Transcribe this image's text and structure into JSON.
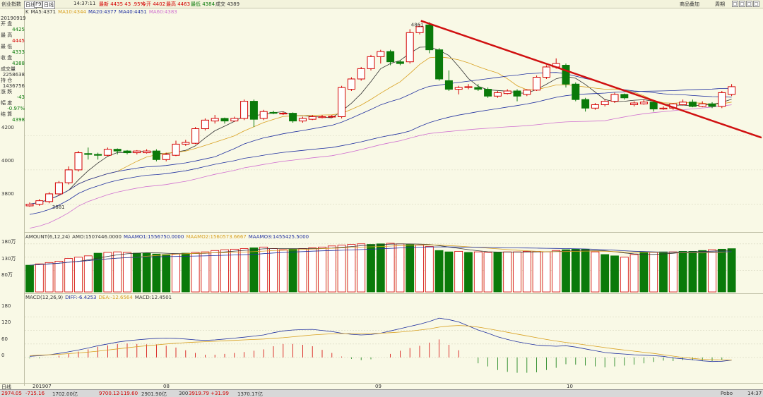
{
  "toolbar": {
    "index_name": "创业指数",
    "period_btn": "日线",
    "f9_btn": "F9",
    "bigdata_btn": "日线",
    "time": "14:37:11",
    "quote": "最新 4435 43 .95%",
    "open": "今开 4402",
    "high": "最高 4463",
    "low": "最低 4384",
    "volume": "成交 4389",
    "right_link": "商品叠加",
    "right_link2": "周期",
    "win_buttons": [
      "□",
      "□",
      "□",
      "□"
    ]
  },
  "info_panel": {
    "date": "20190919",
    "rows": [
      {
        "label": "开 盘",
        "value": "4425",
        "color": "green"
      },
      {
        "label": "最 高",
        "value": "4445",
        "color": "red"
      },
      {
        "label": "最 低",
        "value": "4333",
        "color": "green"
      },
      {
        "label": "收 盘",
        "value": "4388",
        "color": "green"
      },
      {
        "label": "成交量",
        "value": "2258638",
        "color": "dark"
      },
      {
        "label": "持 仓",
        "value": "1436756",
        "color": "dark"
      },
      {
        "label": "涨 跌",
        "value": "-43",
        "color": "green"
      },
      {
        "label": "幅 度",
        "value": "-0.97%",
        "color": "green"
      },
      {
        "label": "结 算",
        "value": "4398",
        "color": "green"
      }
    ]
  },
  "ma_legend": [
    {
      "text": "K",
      "color": "#333333"
    },
    {
      "text": "MA5:4371",
      "color": "#333333"
    },
    {
      "text": "MA10:4344",
      "color": "#d8a020"
    },
    {
      "text": "MA20:4377",
      "color": "#2030a0"
    },
    {
      "text": "MA40:4451",
      "color": "#2030a0"
    },
    {
      "text": "MA60:4383",
      "color": "#d070d0"
    }
  ],
  "amount_legend": [
    {
      "text": "AMOUNT(6,12,24)",
      "color": "#333333"
    },
    {
      "text": "AMO:1507446.0000",
      "color": "#333333"
    },
    {
      "text": "MAAMO1:1556750.0000",
      "color": "#2030a0"
    },
    {
      "text": "MAAMO2:1560573.6667",
      "color": "#d8a020"
    },
    {
      "text": "MAAMO3:1455425.5000",
      "color": "#2030a0"
    }
  ],
  "macd_legend": [
    {
      "text": "MACD(12,26,9)",
      "color": "#333333"
    },
    {
      "text": "DIFF:-6.4253",
      "color": "#2030a0"
    },
    {
      "text": "DEA:-12.6564",
      "color": "#d8a020"
    },
    {
      "text": "MACD:12.4501",
      "color": "#333333"
    }
  ],
  "price_axis": [
    "4200",
    "4000",
    "3800"
  ],
  "amount_axis": [
    "180万",
    "130万",
    "80万"
  ],
  "macd_axis": [
    "180",
    "120",
    "60",
    "0"
  ],
  "x_labels": [
    "日线",
    "201907",
    "08",
    "09",
    "10"
  ],
  "price_annotations": {
    "high": "4861",
    "low": "3881"
  },
  "bottombar": {
    "items": [
      {
        "text": "2974.05",
        "color": "#d40000"
      },
      {
        "text": "-715.16",
        "color": "#d40000"
      },
      {
        "text": "1702.00亿",
        "color": "#333333"
      },
      {
        "text": "9700.12",
        "color": "#d40000"
      },
      {
        "text": "-119.60",
        "color": "#d40000"
      },
      {
        "text": "2901.90亿",
        "color": "#333333"
      },
      {
        "text": "300",
        "color": "#333333"
      },
      {
        "text": "3919.79",
        "color": "#d40000"
      },
      {
        "text": "+31.99",
        "color": "#d40000"
      },
      {
        "text": "1370.17亿",
        "color": "#333333"
      },
      {
        "text": "Pobo",
        "color": "#333333"
      },
      {
        "text": "14:37",
        "color": "#333333"
      }
    ]
  },
  "chart_data": [
    {
      "type": "candlestick",
      "title": "",
      "y_ticks": [
        3800,
        4000,
        4200
      ],
      "ylim": [
        3650,
        4900
      ],
      "annotations": {
        "max": 4861,
        "min": 3881
      },
      "candles": [
        {
          "o": 3790,
          "c": 3800,
          "h": 3810,
          "l": 3785
        },
        {
          "o": 3800,
          "c": 3820,
          "h": 3830,
          "l": 3790
        },
        {
          "o": 3815,
          "c": 3860,
          "h": 3870,
          "l": 3805
        },
        {
          "o": 3860,
          "c": 3925,
          "h": 3935,
          "l": 3850
        },
        {
          "o": 3925,
          "c": 4000,
          "h": 4020,
          "l": 3915
        },
        {
          "o": 4000,
          "c": 4100,
          "h": 4110,
          "l": 3990
        },
        {
          "o": 4095,
          "c": 4090,
          "h": 4130,
          "l": 4060
        },
        {
          "o": 4090,
          "c": 4085,
          "h": 4100,
          "l": 4060
        },
        {
          "o": 4085,
          "c": 4120,
          "h": 4130,
          "l": 4080
        },
        {
          "o": 4120,
          "c": 4110,
          "h": 4125,
          "l": 4090
        },
        {
          "o": 4110,
          "c": 4100,
          "h": 4115,
          "l": 4090
        },
        {
          "o": 4100,
          "c": 4110,
          "h": 4115,
          "l": 4090
        },
        {
          "o": 4100,
          "c": 4110,
          "h": 4120,
          "l": 4095
        },
        {
          "o": 4110,
          "c": 4060,
          "h": 4120,
          "l": 4050
        },
        {
          "o": 4060,
          "c": 4090,
          "h": 4100,
          "l": 4050
        },
        {
          "o": 4085,
          "c": 4150,
          "h": 4170,
          "l": 4080
        },
        {
          "o": 4150,
          "c": 4160,
          "h": 4175,
          "l": 4140
        },
        {
          "o": 4155,
          "c": 4240,
          "h": 4250,
          "l": 4150
        },
        {
          "o": 4240,
          "c": 4290,
          "h": 4300,
          "l": 4230
        },
        {
          "o": 4285,
          "c": 4300,
          "h": 4320,
          "l": 4270
        },
        {
          "o": 4300,
          "c": 4285,
          "h": 4305,
          "l": 4270
        },
        {
          "o": 4285,
          "c": 4300,
          "h": 4310,
          "l": 4280
        },
        {
          "o": 4300,
          "c": 4400,
          "h": 4410,
          "l": 4290
        },
        {
          "o": 4400,
          "c": 4295,
          "h": 4410,
          "l": 4250
        },
        {
          "o": 4300,
          "c": 4340,
          "h": 4350,
          "l": 4290
        },
        {
          "o": 4335,
          "c": 4330,
          "h": 4345,
          "l": 4325
        },
        {
          "o": 4330,
          "c": 4330,
          "h": 4340,
          "l": 4320
        },
        {
          "o": 4330,
          "c": 4285,
          "h": 4335,
          "l": 4275
        },
        {
          "o": 4285,
          "c": 4300,
          "h": 4310,
          "l": 4275
        },
        {
          "o": 4295,
          "c": 4310,
          "h": 4320,
          "l": 4290
        },
        {
          "o": 4305,
          "c": 4310,
          "h": 4320,
          "l": 4300
        },
        {
          "o": 4310,
          "c": 4312,
          "h": 4320,
          "l": 4305
        },
        {
          "o": 4310,
          "c": 4480,
          "h": 4490,
          "l": 4300
        },
        {
          "o": 4470,
          "c": 4530,
          "h": 4540,
          "l": 4460
        },
        {
          "o": 4530,
          "c": 4590,
          "h": 4600,
          "l": 4520
        },
        {
          "o": 4590,
          "c": 4660,
          "h": 4670,
          "l": 4580
        },
        {
          "o": 4660,
          "c": 4690,
          "h": 4700,
          "l": 4620
        },
        {
          "o": 4690,
          "c": 4630,
          "h": 4700,
          "l": 4610
        },
        {
          "o": 4630,
          "c": 4620,
          "h": 4640,
          "l": 4610
        },
        {
          "o": 4630,
          "c": 4800,
          "h": 4820,
          "l": 4620
        },
        {
          "o": 4800,
          "c": 4835,
          "h": 4850,
          "l": 4790
        },
        {
          "o": 4845,
          "c": 4700,
          "h": 4861,
          "l": 4680
        },
        {
          "o": 4700,
          "c": 4530,
          "h": 4710,
          "l": 4520
        },
        {
          "o": 4520,
          "c": 4470,
          "h": 4580,
          "l": 4460
        },
        {
          "o": 4470,
          "c": 4480,
          "h": 4490,
          "l": 4440
        },
        {
          "o": 4480,
          "c": 4485,
          "h": 4500,
          "l": 4470
        },
        {
          "o": 4480,
          "c": 4470,
          "h": 4500,
          "l": 4460
        },
        {
          "o": 4470,
          "c": 4430,
          "h": 4480,
          "l": 4420
        },
        {
          "o": 4430,
          "c": 4450,
          "h": 4460,
          "l": 4420
        },
        {
          "o": 4445,
          "c": 4460,
          "h": 4470,
          "l": 4440
        },
        {
          "o": 4460,
          "c": 4430,
          "h": 4470,
          "l": 4400
        },
        {
          "o": 4440,
          "c": 4465,
          "h": 4470,
          "l": 4430
        },
        {
          "o": 4465,
          "c": 4540,
          "h": 4550,
          "l": 4460
        },
        {
          "o": 4540,
          "c": 4600,
          "h": 4610,
          "l": 4530
        },
        {
          "o": 4600,
          "c": 4620,
          "h": 4650,
          "l": 4590
        },
        {
          "o": 4610,
          "c": 4500,
          "h": 4620,
          "l": 4480
        },
        {
          "o": 4500,
          "c": 4410,
          "h": 4510,
          "l": 4400
        },
        {
          "o": 4410,
          "c": 4360,
          "h": 4420,
          "l": 4340
        },
        {
          "o": 4360,
          "c": 4380,
          "h": 4390,
          "l": 4350
        },
        {
          "o": 4380,
          "c": 4400,
          "h": 4410,
          "l": 4370
        },
        {
          "o": 4400,
          "c": 4440,
          "h": 4450,
          "l": 4390
        },
        {
          "o": 4440,
          "c": 4420,
          "h": 4445,
          "l": 4410
        },
        {
          "o": 4380,
          "c": 4390,
          "h": 4400,
          "l": 4370
        },
        {
          "o": 4385,
          "c": 4395,
          "h": 4410,
          "l": 4380
        },
        {
          "o": 4395,
          "c": 4355,
          "h": 4400,
          "l": 4340
        },
        {
          "o": 4355,
          "c": 4360,
          "h": 4370,
          "l": 4350
        },
        {
          "o": 4360,
          "c": 4385,
          "h": 4390,
          "l": 4350
        },
        {
          "o": 4380,
          "c": 4395,
          "h": 4410,
          "l": 4375
        },
        {
          "o": 4395,
          "c": 4370,
          "h": 4410,
          "l": 4365
        },
        {
          "o": 4370,
          "c": 4385,
          "h": 4400,
          "l": 4365
        },
        {
          "o": 4385,
          "c": 4370,
          "h": 4395,
          "l": 4360
        },
        {
          "o": 4370,
          "c": 4450,
          "h": 4460,
          "l": 4360
        },
        {
          "o": 4440,
          "c": 4485,
          "h": 4500,
          "l": 4430
        }
      ]
    },
    {
      "type": "bar",
      "title": "AMOUNT(6,12,24)",
      "y_ticks": [
        "80万",
        "130万",
        "180万"
      ],
      "ylim": [
        0,
        190
      ],
      "values_wan": [
        100,
        105,
        110,
        115,
        125,
        130,
        135,
        145,
        148,
        150,
        148,
        145,
        145,
        142,
        140,
        142,
        145,
        148,
        150,
        155,
        158,
        160,
        162,
        165,
        168,
        162,
        158,
        160,
        162,
        165,
        168,
        172,
        175,
        178,
        180,
        178,
        180,
        182,
        180,
        178,
        175,
        170,
        155,
        150,
        152,
        148,
        150,
        148,
        148,
        150,
        150,
        152,
        152,
        150,
        155,
        158,
        160,
        160,
        150,
        140,
        135,
        130,
        140,
        150,
        148,
        150,
        150,
        152,
        152,
        155,
        158,
        160,
        162
      ],
      "bar_colors": [
        "G",
        "R",
        "R",
        "R",
        "R",
        "R",
        "R",
        "G",
        "R",
        "R",
        "R",
        "G",
        "G",
        "G",
        "G",
        "R",
        "G",
        "R",
        "R",
        "R",
        "R",
        "R",
        "R",
        "G",
        "R",
        "R",
        "R",
        "G",
        "R",
        "R",
        "R",
        "R",
        "R",
        "R",
        "R",
        "G",
        "G",
        "R",
        "R",
        "G",
        "R",
        "R",
        "G",
        "G",
        "R",
        "G",
        "R",
        "R",
        "G",
        "R",
        "R",
        "R",
        "R",
        "R",
        "R",
        "G",
        "G",
        "G",
        "R",
        "G",
        "G",
        "R",
        "R",
        "G",
        "R",
        "G",
        "R",
        "G",
        "G",
        "G",
        "R",
        "G",
        "G"
      ]
    },
    {
      "type": "line",
      "title": "MACD(12,26,9)",
      "y_ticks": [
        0,
        60,
        120,
        180
      ],
      "ylim": [
        -110,
        260
      ],
      "series": [
        {
          "name": "DIFF",
          "values": [
            5,
            8,
            12,
            18,
            25,
            33,
            42,
            52,
            60,
            68,
            74,
            78,
            82,
            85,
            86,
            85,
            82,
            78,
            76,
            78,
            82,
            86,
            90,
            95,
            100,
            110,
            118,
            122,
            124,
            125,
            120,
            115,
            108,
            103,
            100,
            102,
            108,
            118,
            128,
            138,
            148,
            160,
            175,
            168,
            158,
            140,
            122,
            108,
            92,
            80,
            70,
            62,
            55,
            52,
            50,
            52,
            46,
            38,
            30,
            22,
            18,
            15,
            12,
            10,
            8,
            5,
            -2,
            -6,
            -10,
            -15,
            -18,
            -17,
            -12
          ]
        },
        {
          "name": "DEA",
          "values": [
            8,
            10,
            12,
            14,
            17,
            20,
            24,
            28,
            33,
            38,
            43,
            48,
            52,
            56,
            60,
            63,
            66,
            68,
            70,
            72,
            74,
            76,
            78,
            80,
            82,
            85,
            88,
            92,
            96,
            100,
            103,
            105,
            106,
            106,
            106,
            106,
            108,
            110,
            113,
            117,
            122,
            127,
            135,
            140,
            142,
            140,
            135,
            128,
            120,
            112,
            104,
            96,
            88,
            80,
            73,
            67,
            62,
            56,
            50,
            44,
            38,
            33,
            28,
            23,
            18,
            12,
            6,
            0,
            -4,
            -8,
            -10,
            -11,
            -12
          ]
        },
        {
          "name": "MACD",
          "values": [
            -4,
            -4,
            0,
            8,
            16,
            26,
            36,
            48,
            54,
            60,
            62,
            60,
            58,
            58,
            52,
            44,
            32,
            20,
            12,
            12,
            16,
            20,
            24,
            30,
            36,
            50,
            60,
            60,
            56,
            50,
            34,
            20,
            4,
            -6,
            -12,
            -8,
            0,
            16,
            30,
            42,
            52,
            66,
            80,
            56,
            32,
            0,
            -26,
            -40,
            -56,
            -64,
            -68,
            -68,
            -66,
            -56,
            -46,
            -30,
            -32,
            -36,
            -40,
            -44,
            -40,
            -36,
            -32,
            -26,
            -20,
            -14,
            -16,
            -12,
            -12,
            -14,
            -16,
            -12,
            0
          ]
        }
      ]
    }
  ]
}
